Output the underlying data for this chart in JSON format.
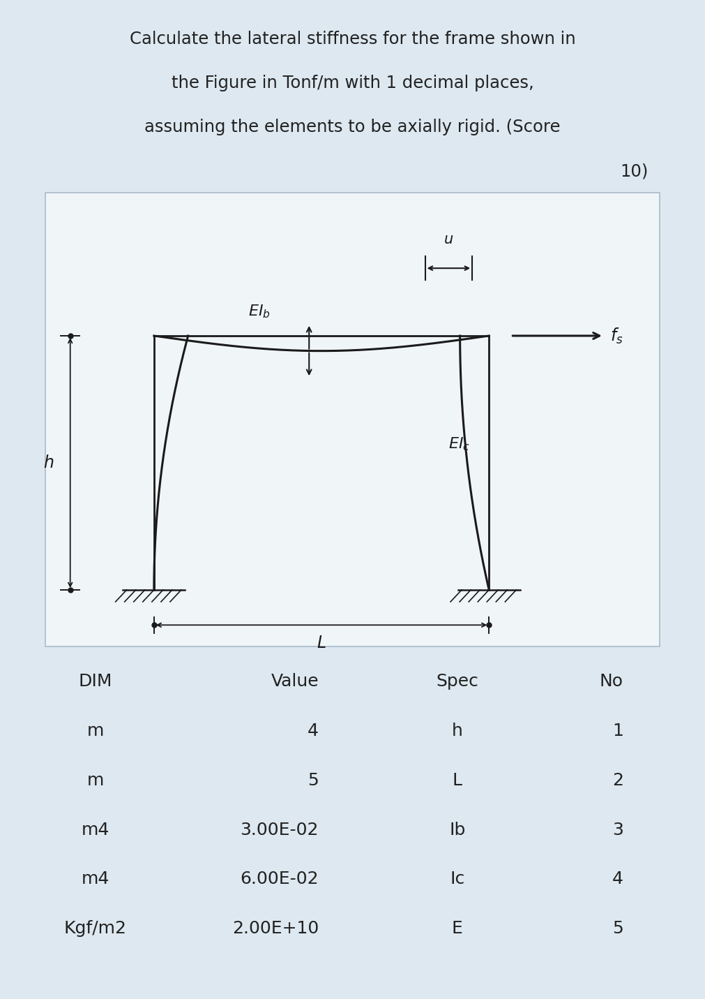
{
  "title_line1": "Calculate the lateral stiffness for the frame shown in",
  "title_line2": "the Figure in Tonf/m with 1 decimal places,",
  "title_line3": "assuming the elements to be axially rigid. (Score",
  "title_line4": "10)",
  "bg_color": "#dde8f0",
  "diagram_bg": "#f0f5f8",
  "table_headers": [
    "DIM",
    "Value",
    "Spec",
    "No"
  ],
  "table_rows": [
    [
      "m",
      "4",
      "h",
      "1"
    ],
    [
      "m",
      "5",
      "L",
      "2"
    ],
    [
      "m4",
      "3.00E-02",
      "Ib",
      "3"
    ],
    [
      "m4",
      "6.00E-02",
      "Ic",
      "4"
    ],
    [
      "Kgf/m2",
      "2.00E+10",
      "E",
      "5"
    ]
  ],
  "line_color": "#1a1a1a",
  "text_color": "#222222"
}
